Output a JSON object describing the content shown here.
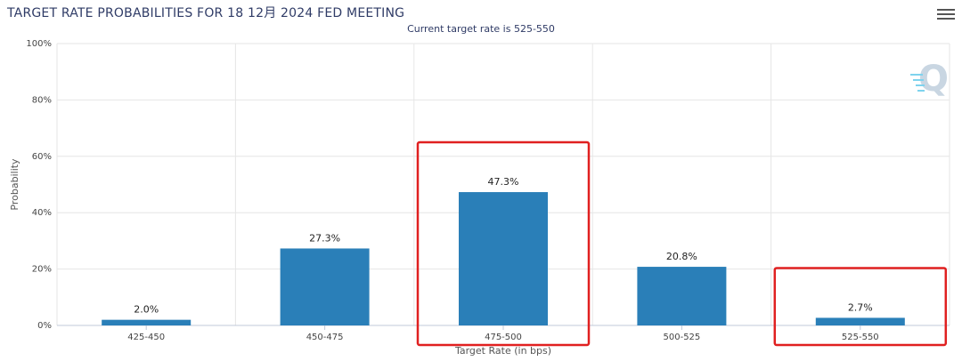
{
  "chart_data": {
    "type": "bar",
    "title": "TARGET RATE PROBABILITIES FOR 18 12月 2024 FED MEETING",
    "subtitle": "Current target rate is 525-550",
    "xlabel": "Target Rate (in bps)",
    "ylabel": "Probability",
    "categories": [
      "425-450",
      "450-475",
      "475-500",
      "500-525",
      "525-550"
    ],
    "values": [
      2.0,
      27.3,
      47.3,
      20.8,
      2.7
    ],
    "data_labels": [
      "2.0%",
      "27.3%",
      "47.3%",
      "20.8%",
      "2.7%"
    ],
    "ylim": [
      0,
      100
    ],
    "yticks": [
      0,
      20,
      40,
      60,
      80,
      100
    ],
    "ytick_labels": [
      "0%",
      "20%",
      "40%",
      "60%",
      "80%",
      "100%"
    ],
    "grid": true,
    "legend": "none",
    "bar_color": "#2a7fb8",
    "highlight_color": "#e02020",
    "highlighted_categories": [
      "475-500",
      "525-550"
    ]
  },
  "icons": {
    "menu": "hamburger-menu-icon",
    "watermark": "q-logo-icon"
  }
}
